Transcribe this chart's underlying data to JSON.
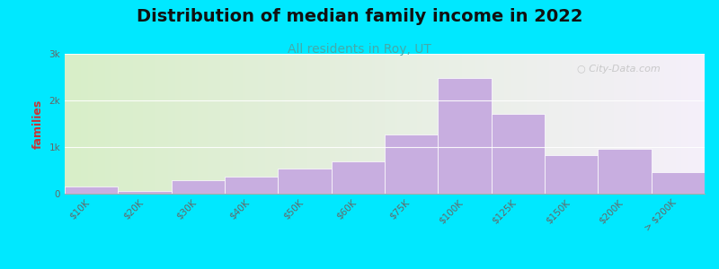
{
  "title": "Distribution of median family income in 2022",
  "subtitle": "All residents in Roy, UT",
  "xlabel_labels": [
    "$10K",
    "$20K",
    "$30K",
    "$40K",
    "$50K",
    "$60K",
    "$75K",
    "$100K",
    "$125K",
    "$150K",
    "$200K",
    "> $200K"
  ],
  "values": [
    150,
    50,
    280,
    370,
    530,
    700,
    1270,
    2480,
    1720,
    820,
    970,
    470
  ],
  "bar_color": "#c8aee0",
  "bar_edge_color": "#c8aee0",
  "bg_outer": "#00e8ff",
  "bg_gradient_left": "#d8eec8",
  "bg_gradient_right": "#f5f0fa",
  "ylabel": "families",
  "yticks": [
    0,
    1000,
    2000,
    3000
  ],
  "ytick_labels": [
    "0",
    "1k",
    "2k",
    "3k"
  ],
  "ylim": [
    0,
    3000
  ],
  "watermark": "City-Data.com",
  "title_fontsize": 14,
  "subtitle_fontsize": 10,
  "ylabel_fontsize": 9,
  "tick_fontsize": 7.5,
  "ylabel_color": "#cc3333",
  "subtitle_color": "#44aaaa",
  "title_color": "#111111",
  "tick_color": "#666666"
}
